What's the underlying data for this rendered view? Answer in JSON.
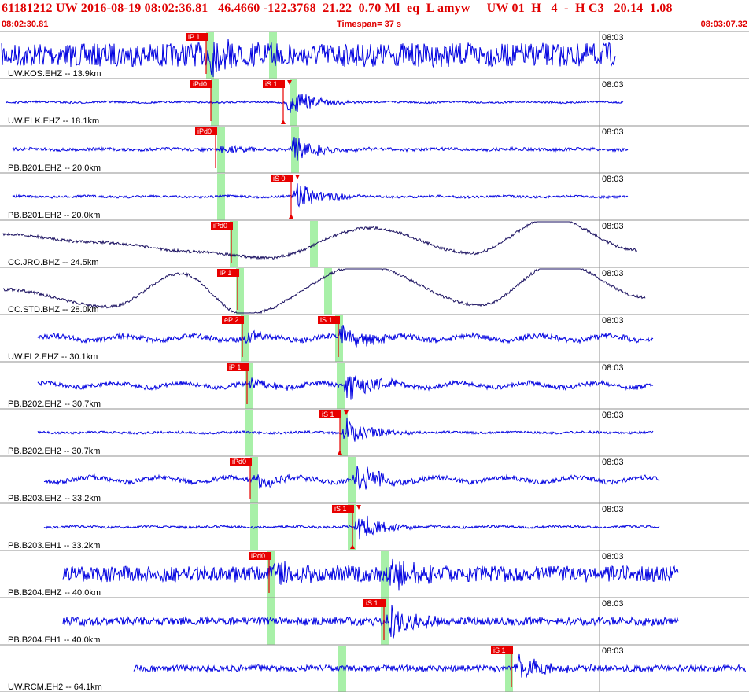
{
  "header": {
    "title": "61181212 UW 2016-08-19 08:02:36.81   46.4660 -122.3768  21.22  0.70 Ml  eq  L amyw     UW 01  H   4  -  H C3   20.14  1.08",
    "start_time": "08:02:30.81",
    "timespan": "Timespan=  37 s",
    "end_time": "08:03:07.32"
  },
  "colors": {
    "header_text": "#e00000",
    "trace_blue": "#0000e0",
    "trace_dark": "#1a1060",
    "pick_red": "#e80000",
    "window_green": "#a8f0a8",
    "grid": "#909090",
    "minute_line": "#909090"
  },
  "chart_data": {
    "type": "seismogram",
    "time_axis": {
      "start": "08:02:30.81",
      "end": "08:03:07.32",
      "span_s": 37,
      "minute_label": "08:03"
    },
    "traces": [
      {
        "label": "UW.KOS.EHZ -- 13.9km",
        "minute_label": "08:03",
        "color": "blue",
        "style": "noise",
        "x_start": 2,
        "x_end": 782,
        "amp": 15,
        "trend": 0,
        "picks": [
          {
            "label": "iP 1",
            "x": 262,
            "arrow": false
          }
        ],
        "green_windows": [
          262,
          342
        ],
        "events": [
          {
            "x": 262,
            "amp": 20
          }
        ]
      },
      {
        "label": "UW.ELK.EHZ -- 18.1km",
        "minute_label": "08:03",
        "color": "blue",
        "style": "quiet",
        "x_start": 8,
        "x_end": 792,
        "amp": 1.2,
        "trend": 0,
        "picks": [
          {
            "label": "iPd0",
            "x": 268,
            "arrow": false
          },
          {
            "label": "iS 1",
            "x": 360,
            "arrow": true
          }
        ],
        "green_windows": [
          268,
          368
        ],
        "events": [
          {
            "x": 362,
            "amp": 22
          }
        ]
      },
      {
        "label": "PB.B201.EHZ -- 20.0km",
        "minute_label": "08:03",
        "color": "blue",
        "style": "quiet",
        "x_start": 16,
        "x_end": 798,
        "amp": 2,
        "trend": 0,
        "picks": [
          {
            "label": "iPd0",
            "x": 274,
            "arrow": false
          }
        ],
        "green_windows": [
          276,
          370
        ],
        "events": [
          {
            "x": 276,
            "amp": 8
          },
          {
            "x": 368,
            "amp": 22
          }
        ]
      },
      {
        "label": "PB.B201.EH2 -- 20.0km",
        "minute_label": "08:03",
        "color": "blue",
        "style": "quiet",
        "x_start": 16,
        "x_end": 798,
        "amp": 1.5,
        "trend": 0,
        "picks": [
          {
            "label": "iS 0",
            "x": 370,
            "arrow": true
          }
        ],
        "green_windows": [
          276
        ],
        "events": [
          {
            "x": 372,
            "amp": 22
          }
        ]
      },
      {
        "label": "CC.JRO.BHZ -- 24.5km",
        "minute_label": "08:03",
        "color": "dark",
        "style": "wave",
        "x_start": 4,
        "x_end": 810,
        "amp": 1.2,
        "trend": 0,
        "picks": [
          {
            "label": "iPd0",
            "x": 294,
            "arrow": false
          }
        ],
        "green_windows": [
          292,
          394
        ],
        "wave": [
          [
            4,
            -12
          ],
          [
            120,
            -2
          ],
          [
            250,
            10
          ],
          [
            340,
            18
          ],
          [
            470,
            -20
          ],
          [
            600,
            12
          ],
          [
            700,
            -32
          ],
          [
            810,
            8
          ]
        ]
      },
      {
        "label": "CC.STD.BHZ -- 28.0km",
        "minute_label": "08:03",
        "color": "dark",
        "style": "wave",
        "x_start": 4,
        "x_end": 820,
        "amp": 1.2,
        "trend": 0,
        "picks": [
          {
            "label": "iP 1",
            "x": 302,
            "arrow": false
          }
        ],
        "green_windows": [
          300,
          412
        ],
        "wave": [
          [
            4,
            -2
          ],
          [
            140,
            20
          ],
          [
            230,
            -22
          ],
          [
            310,
            30
          ],
          [
            460,
            -32
          ],
          [
            610,
            18
          ],
          [
            710,
            -36
          ],
          [
            820,
            8
          ]
        ]
      },
      {
        "label": "UW.FL2.EHZ -- 30.1km",
        "minute_label": "08:03",
        "color": "blue",
        "style": "moderate",
        "x_start": 48,
        "x_end": 830,
        "amp": 3.5,
        "trend": 0,
        "picks": [
          {
            "label": "eP 2",
            "x": 308,
            "arrow": false
          },
          {
            "label": "iS 1",
            "x": 430,
            "arrow": false
          }
        ],
        "green_windows": [
          306,
          426
        ],
        "events": [
          {
            "x": 308,
            "amp": 8
          },
          {
            "x": 430,
            "amp": 24
          }
        ]
      },
      {
        "label": "PB.B202.EHZ -- 30.7km",
        "minute_label": "08:03",
        "color": "blue",
        "style": "moderate",
        "x_start": 48,
        "x_end": 830,
        "amp": 3,
        "trend": 0,
        "picks": [
          {
            "label": "iP 1",
            "x": 314,
            "arrow": false
          }
        ],
        "green_windows": [
          312,
          428
        ],
        "events": [
          {
            "x": 314,
            "amp": 8
          },
          {
            "x": 436,
            "amp": 24
          }
        ]
      },
      {
        "label": "PB.B202.EH2 -- 30.7km",
        "minute_label": "08:03",
        "color": "blue",
        "style": "quiet",
        "x_start": 48,
        "x_end": 830,
        "amp": 1.5,
        "trend": 0,
        "picks": [
          {
            "label": "iS 1",
            "x": 432,
            "arrow": true
          }
        ],
        "green_windows": [
          312,
          432
        ],
        "events": [
          {
            "x": 434,
            "amp": 24
          }
        ]
      },
      {
        "label": "PB.B203.EHZ -- 33.2km",
        "minute_label": "08:03",
        "color": "blue",
        "style": "moderate",
        "x_start": 56,
        "x_end": 838,
        "amp": 3,
        "trend": 0,
        "picks": [
          {
            "label": "iPd0",
            "x": 318,
            "arrow": false
          }
        ],
        "green_windows": [
          318,
          442
        ],
        "events": [
          {
            "x": 318,
            "amp": 14
          },
          {
            "x": 448,
            "amp": 24
          }
        ]
      },
      {
        "label": "PB.B203.EH1 -- 33.2km",
        "minute_label": "08:03",
        "color": "blue",
        "style": "quiet",
        "x_start": 56,
        "x_end": 838,
        "amp": 1.5,
        "trend": 0,
        "picks": [
          {
            "label": "iS 1",
            "x": 448,
            "arrow": true
          }
        ],
        "green_windows": [
          318,
          442
        ],
        "events": [
          {
            "x": 450,
            "amp": 24
          }
        ]
      },
      {
        "label": "PB.B204.EHZ -- 40.0km",
        "minute_label": "08:03",
        "color": "blue",
        "style": "noise",
        "x_start": 80,
        "x_end": 862,
        "amp": 10,
        "trend": 0,
        "picks": [
          {
            "label": "iPd0",
            "x": 342,
            "arrow": false
          }
        ],
        "green_windows": [
          340,
          484
        ],
        "events": [
          {
            "x": 344,
            "amp": 20
          },
          {
            "x": 490,
            "amp": 28
          }
        ]
      },
      {
        "label": "PB.B204.EH1 -- 40.0km",
        "minute_label": "08:03",
        "color": "blue",
        "style": "noise",
        "x_start": 80,
        "x_end": 862,
        "amp": 5,
        "trend": 0,
        "picks": [
          {
            "label": "iS 1",
            "x": 488,
            "arrow": false
          }
        ],
        "green_windows": [
          340,
          484
        ],
        "events": [
          {
            "x": 490,
            "amp": 28
          }
        ]
      },
      {
        "label": "UW.RCM.EH2 -- 64.1km",
        "minute_label": "08:03",
        "color": "blue",
        "style": "noise",
        "x_start": 170,
        "x_end": 948,
        "amp": 4,
        "trend": 0,
        "picks": [
          {
            "label": "iS 1",
            "x": 650,
            "arrow": false
          }
        ],
        "green_windows": [
          430,
          642
        ],
        "events": [
          {
            "x": 652,
            "amp": 26
          }
        ]
      }
    ]
  }
}
